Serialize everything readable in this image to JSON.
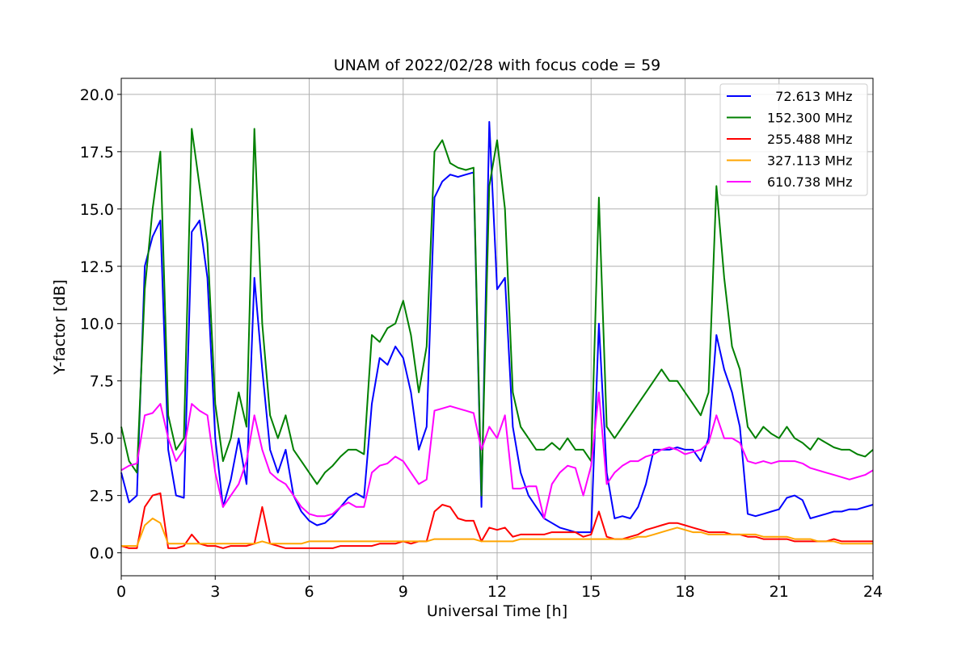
{
  "chart_data": {
    "type": "line",
    "title": "UNAM of 2022/02/28 with focus code = 59",
    "xlabel": "Universal Time [h]",
    "ylabel": "Y-factor [dB]",
    "xlim": [
      0,
      24
    ],
    "ylim": [
      -1,
      20.7
    ],
    "xticks": [
      0,
      3,
      6,
      9,
      12,
      15,
      18,
      21,
      24
    ],
    "xtick_labels": [
      "0",
      "3",
      "6",
      "9",
      "12",
      "15",
      "18",
      "21",
      "24"
    ],
    "yticks": [
      0,
      2.5,
      5,
      7.5,
      10,
      12.5,
      15,
      17.5,
      20
    ],
    "ytick_labels": [
      "0.0",
      "2.5",
      "5.0",
      "7.5",
      "10.0",
      "12.5",
      "15.0",
      "17.5",
      "20.0"
    ],
    "grid": true,
    "legend_position": "top-right",
    "series": [
      {
        "name": "  72.613 MHz",
        "color": "#0000ff",
        "x": [
          0,
          0.25,
          0.5,
          0.75,
          1,
          1.25,
          1.5,
          1.75,
          2,
          2.25,
          2.5,
          2.75,
          3,
          3.25,
          3.5,
          3.75,
          4,
          4.25,
          4.5,
          4.75,
          5,
          5.25,
          5.5,
          5.75,
          6,
          6.25,
          6.5,
          6.75,
          7,
          7.25,
          7.5,
          7.75,
          8,
          8.25,
          8.5,
          8.75,
          9,
          9.25,
          9.5,
          9.75,
          10,
          10.25,
          10.5,
          10.75,
          11,
          11.25,
          11.5,
          11.75,
          12,
          12.25,
          12.5,
          12.75,
          13,
          13.25,
          13.5,
          13.75,
          14,
          14.25,
          14.5,
          14.75,
          15,
          15.25,
          15.5,
          15.75,
          16,
          16.25,
          16.5,
          16.75,
          17,
          17.25,
          17.5,
          17.75,
          18,
          18.25,
          18.5,
          18.75,
          19,
          19.25,
          19.5,
          19.75,
          20,
          20.25,
          20.5,
          20.75,
          21,
          21.25,
          21.5,
          21.75,
          22,
          22.25,
          22.5,
          22.75,
          23,
          23.25,
          23.5,
          23.75,
          24
        ],
        "y": [
          3.5,
          2.2,
          2.5,
          12.5,
          13.8,
          14.5,
          4.5,
          2.5,
          2.4,
          14.0,
          14.5,
          12.0,
          5.0,
          2.0,
          3.2,
          5.0,
          3.0,
          12.0,
          8.0,
          4.5,
          3.5,
          4.5,
          2.5,
          1.8,
          1.4,
          1.2,
          1.3,
          1.6,
          2.0,
          2.4,
          2.6,
          2.4,
          6.5,
          8.5,
          8.2,
          9.0,
          8.5,
          7.0,
          4.5,
          5.5,
          15.5,
          16.2,
          16.5,
          16.4,
          16.5,
          16.6,
          2.0,
          18.8,
          11.5,
          12.0,
          5.5,
          3.5,
          2.5,
          2.0,
          1.5,
          1.3,
          1.1,
          1.0,
          0.9,
          0.9,
          0.9,
          10.0,
          3.5,
          1.5,
          1.6,
          1.5,
          2.0,
          3.0,
          4.5,
          4.5,
          4.5,
          4.6,
          4.5,
          4.5,
          4.0,
          5.0,
          9.5,
          8.0,
          7.0,
          5.5,
          1.7,
          1.6,
          1.7,
          1.8,
          1.9,
          2.4,
          2.5,
          2.3,
          1.5,
          1.6,
          1.7,
          1.8,
          1.8,
          1.9,
          1.9,
          2.0,
          2.1
        ]
      },
      {
        "name": "152.300 MHz",
        "color": "#008000",
        "x": [
          0,
          0.25,
          0.5,
          0.75,
          1,
          1.25,
          1.5,
          1.75,
          2,
          2.25,
          2.5,
          2.75,
          3,
          3.25,
          3.5,
          3.75,
          4,
          4.25,
          4.5,
          4.75,
          5,
          5.25,
          5.5,
          5.75,
          6,
          6.25,
          6.5,
          6.75,
          7,
          7.25,
          7.5,
          7.75,
          8,
          8.25,
          8.5,
          8.75,
          9,
          9.25,
          9.5,
          9.75,
          10,
          10.25,
          10.5,
          10.75,
          11,
          11.25,
          11.5,
          11.75,
          12,
          12.25,
          12.5,
          12.75,
          13,
          13.25,
          13.5,
          13.75,
          14,
          14.25,
          14.5,
          14.75,
          15,
          15.25,
          15.5,
          15.75,
          16,
          16.25,
          16.5,
          16.75,
          17,
          17.25,
          17.5,
          17.75,
          18,
          18.25,
          18.5,
          18.75,
          19,
          19.25,
          19.5,
          19.75,
          20,
          20.25,
          20.5,
          20.75,
          21,
          21.25,
          21.5,
          21.75,
          22,
          22.25,
          22.5,
          22.75,
          23,
          23.25,
          23.5,
          23.75,
          24
        ],
        "y": [
          5.5,
          4.0,
          3.5,
          11.5,
          15.0,
          17.5,
          6.0,
          4.5,
          5.0,
          18.5,
          16.0,
          13.5,
          6.5,
          4.0,
          5.0,
          7.0,
          5.5,
          18.5,
          10.0,
          6.0,
          5.0,
          6.0,
          4.5,
          4.0,
          3.5,
          3.0,
          3.5,
          3.8,
          4.2,
          4.5,
          4.5,
          4.3,
          9.5,
          9.2,
          9.8,
          10.0,
          11.0,
          9.5,
          7.0,
          9.0,
          17.5,
          18.0,
          17.0,
          16.8,
          16.7,
          16.8,
          2.5,
          16.0,
          18.0,
          15.0,
          7.0,
          5.5,
          5.0,
          4.5,
          4.5,
          4.8,
          4.5,
          5.0,
          4.5,
          4.5,
          4.0,
          15.5,
          5.5,
          5.0,
          5.5,
          6.0,
          6.5,
          7.0,
          7.5,
          8.0,
          7.5,
          7.5,
          7.0,
          6.5,
          6.0,
          7.0,
          16.0,
          12.0,
          9.0,
          8.0,
          5.5,
          5.0,
          5.5,
          5.2,
          5.0,
          5.5,
          5.0,
          4.8,
          4.5,
          5.0,
          4.8,
          4.6,
          4.5,
          4.5,
          4.3,
          4.2,
          4.5
        ]
      },
      {
        "name": "255.488 MHz",
        "color": "#ff0000",
        "x": [
          0,
          0.25,
          0.5,
          0.75,
          1,
          1.25,
          1.5,
          1.75,
          2,
          2.25,
          2.5,
          2.75,
          3,
          3.25,
          3.5,
          3.75,
          4,
          4.25,
          4.5,
          4.75,
          5,
          5.25,
          5.5,
          5.75,
          6,
          6.25,
          6.5,
          6.75,
          7,
          7.25,
          7.5,
          7.75,
          8,
          8.25,
          8.5,
          8.75,
          9,
          9.25,
          9.5,
          9.75,
          10,
          10.25,
          10.5,
          10.75,
          11,
          11.25,
          11.5,
          11.75,
          12,
          12.25,
          12.5,
          12.75,
          13,
          13.25,
          13.5,
          13.75,
          14,
          14.25,
          14.5,
          14.75,
          15,
          15.25,
          15.5,
          15.75,
          16,
          16.25,
          16.5,
          16.75,
          17,
          17.25,
          17.5,
          17.75,
          18,
          18.25,
          18.5,
          18.75,
          19,
          19.25,
          19.5,
          19.75,
          20,
          20.25,
          20.5,
          20.75,
          21,
          21.25,
          21.5,
          21.75,
          22,
          22.25,
          22.5,
          22.75,
          23,
          23.25,
          23.5,
          23.75,
          24
        ],
        "y": [
          0.3,
          0.2,
          0.2,
          2.0,
          2.5,
          2.6,
          0.2,
          0.2,
          0.3,
          0.8,
          0.4,
          0.3,
          0.3,
          0.2,
          0.3,
          0.3,
          0.3,
          0.4,
          2.0,
          0.4,
          0.3,
          0.2,
          0.2,
          0.2,
          0.2,
          0.2,
          0.2,
          0.2,
          0.3,
          0.3,
          0.3,
          0.3,
          0.3,
          0.4,
          0.4,
          0.4,
          0.5,
          0.4,
          0.5,
          0.5,
          1.8,
          2.1,
          2.0,
          1.5,
          1.4,
          1.4,
          0.5,
          1.1,
          1.0,
          1.1,
          0.7,
          0.8,
          0.8,
          0.8,
          0.8,
          0.9,
          0.9,
          0.9,
          0.9,
          0.7,
          0.8,
          1.8,
          0.7,
          0.6,
          0.6,
          0.7,
          0.8,
          1.0,
          1.1,
          1.2,
          1.3,
          1.3,
          1.2,
          1.1,
          1.0,
          0.9,
          0.9,
          0.9,
          0.8,
          0.8,
          0.7,
          0.7,
          0.6,
          0.6,
          0.6,
          0.6,
          0.5,
          0.5,
          0.5,
          0.5,
          0.5,
          0.6,
          0.5,
          0.5,
          0.5,
          0.5,
          0.5
        ]
      },
      {
        "name": "327.113 MHz",
        "color": "#ffa500",
        "x": [
          0,
          0.25,
          0.5,
          0.75,
          1,
          1.25,
          1.5,
          1.75,
          2,
          2.25,
          2.5,
          2.75,
          3,
          3.25,
          3.5,
          3.75,
          4,
          4.25,
          4.5,
          4.75,
          5,
          5.25,
          5.5,
          5.75,
          6,
          6.25,
          6.5,
          6.75,
          7,
          7.25,
          7.5,
          7.75,
          8,
          8.25,
          8.5,
          8.75,
          9,
          9.25,
          9.5,
          9.75,
          10,
          10.25,
          10.5,
          10.75,
          11,
          11.25,
          11.5,
          11.75,
          12,
          12.25,
          12.5,
          12.75,
          13,
          13.25,
          13.5,
          13.75,
          14,
          14.25,
          14.5,
          14.75,
          15,
          15.25,
          15.5,
          15.75,
          16,
          16.25,
          16.5,
          16.75,
          17,
          17.25,
          17.5,
          17.75,
          18,
          18.25,
          18.5,
          18.75,
          19,
          19.25,
          19.5,
          19.75,
          20,
          20.25,
          20.5,
          20.75,
          21,
          21.25,
          21.5,
          21.75,
          22,
          22.25,
          22.5,
          22.75,
          23,
          23.25,
          23.5,
          23.75,
          24
        ],
        "y": [
          0.3,
          0.3,
          0.3,
          1.2,
          1.5,
          1.3,
          0.4,
          0.4,
          0.4,
          0.4,
          0.4,
          0.4,
          0.4,
          0.4,
          0.4,
          0.4,
          0.4,
          0.4,
          0.5,
          0.4,
          0.4,
          0.4,
          0.4,
          0.4,
          0.5,
          0.5,
          0.5,
          0.5,
          0.5,
          0.5,
          0.5,
          0.5,
          0.5,
          0.5,
          0.5,
          0.5,
          0.5,
          0.5,
          0.5,
          0.5,
          0.6,
          0.6,
          0.6,
          0.6,
          0.6,
          0.6,
          0.5,
          0.5,
          0.5,
          0.5,
          0.5,
          0.6,
          0.6,
          0.6,
          0.6,
          0.6,
          0.6,
          0.6,
          0.6,
          0.6,
          0.6,
          0.6,
          0.6,
          0.6,
          0.6,
          0.6,
          0.7,
          0.7,
          0.8,
          0.9,
          1.0,
          1.1,
          1.0,
          0.9,
          0.9,
          0.8,
          0.8,
          0.8,
          0.8,
          0.8,
          0.8,
          0.8,
          0.7,
          0.7,
          0.7,
          0.7,
          0.6,
          0.6,
          0.6,
          0.5,
          0.5,
          0.5,
          0.4,
          0.4,
          0.4,
          0.4,
          0.4
        ]
      },
      {
        "name": "610.738 MHz",
        "color": "#ff00ff",
        "x": [
          0,
          0.25,
          0.5,
          0.75,
          1,
          1.25,
          1.5,
          1.75,
          2,
          2.25,
          2.5,
          2.75,
          3,
          3.25,
          3.5,
          3.75,
          4,
          4.25,
          4.5,
          4.75,
          5,
          5.25,
          5.5,
          5.75,
          6,
          6.25,
          6.5,
          6.75,
          7,
          7.25,
          7.5,
          7.75,
          8,
          8.25,
          8.5,
          8.75,
          9,
          9.25,
          9.5,
          9.75,
          10,
          10.25,
          10.5,
          10.75,
          11,
          11.25,
          11.5,
          11.75,
          12,
          12.25,
          12.5,
          12.75,
          13,
          13.25,
          13.5,
          13.75,
          14,
          14.25,
          14.5,
          14.75,
          15,
          15.25,
          15.5,
          15.75,
          16,
          16.25,
          16.5,
          16.75,
          17,
          17.25,
          17.5,
          17.75,
          18,
          18.25,
          18.5,
          18.75,
          19,
          19.25,
          19.5,
          19.75,
          20,
          20.25,
          20.5,
          20.75,
          21,
          21.25,
          21.5,
          21.75,
          22,
          22.25,
          22.5,
          22.75,
          23,
          23.25,
          23.5,
          23.75,
          24
        ],
        "y": [
          3.6,
          3.8,
          3.9,
          6.0,
          6.1,
          6.5,
          5.0,
          4.0,
          4.5,
          6.5,
          6.2,
          6.0,
          3.5,
          2.0,
          2.5,
          3.0,
          4.0,
          6.0,
          4.5,
          3.5,
          3.2,
          3.0,
          2.5,
          2.0,
          1.7,
          1.6,
          1.6,
          1.7,
          2.0,
          2.2,
          2.0,
          2.0,
          3.5,
          3.8,
          3.9,
          4.2,
          4.0,
          3.5,
          3.0,
          3.2,
          6.2,
          6.3,
          6.4,
          6.3,
          6.2,
          6.1,
          4.5,
          5.5,
          5.0,
          6.0,
          2.8,
          2.8,
          2.9,
          2.9,
          1.5,
          3.0,
          3.5,
          3.8,
          3.7,
          2.5,
          3.8,
          7.0,
          3.0,
          3.5,
          3.8,
          4.0,
          4.0,
          4.2,
          4.3,
          4.5,
          4.6,
          4.5,
          4.3,
          4.4,
          4.5,
          4.8,
          6.0,
          5.0,
          5.0,
          4.8,
          4.0,
          3.9,
          4.0,
          3.9,
          4.0,
          4.0,
          4.0,
          3.9,
          3.7,
          3.6,
          3.5,
          3.4,
          3.3,
          3.2,
          3.3,
          3.4,
          3.6
        ]
      }
    ]
  }
}
